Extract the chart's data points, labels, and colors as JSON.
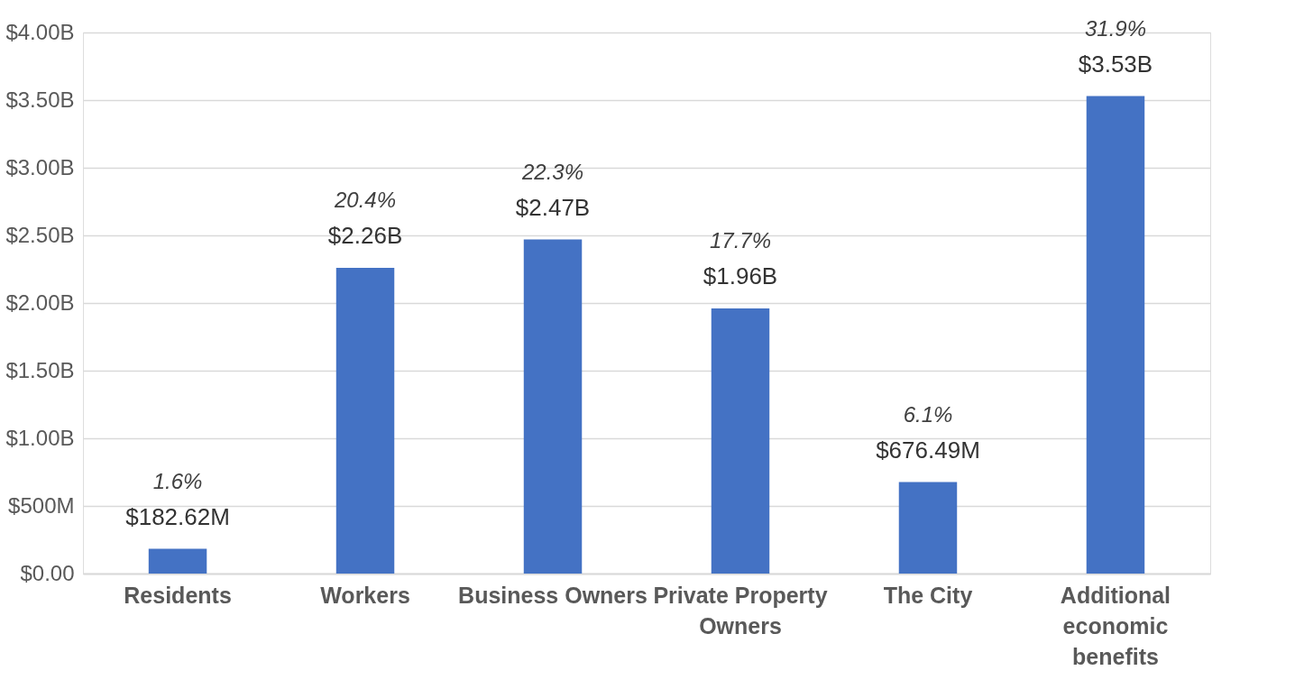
{
  "chart_data": {
    "type": "bar",
    "categories": [
      "Residents",
      "Workers",
      "Business Owners",
      "Private Property Owners",
      "The City",
      "Additional economic benefits"
    ],
    "values": [
      182620000,
      2260000000,
      2470000000,
      1960000000,
      676490000,
      3530000000
    ],
    "value_labels": [
      "$182.62M",
      "$2.26B",
      "$2.47B",
      "$1.96B",
      "$676.49M",
      "$3.53B"
    ],
    "color": "#4472c4",
    "ylim": [
      0,
      4000000000
    ],
    "yticks": [
      {
        "value": 0,
        "label": "$0.00"
      },
      {
        "value": 500000000,
        "label": "$500M"
      },
      {
        "value": 1000000000,
        "label": "$1.00B"
      },
      {
        "value": 1500000000,
        "label": "$1.50B"
      },
      {
        "value": 2000000000,
        "label": "$2.00B"
      },
      {
        "value": 2500000000,
        "label": "$2.50B"
      },
      {
        "value": 3000000000,
        "label": "$3.00B"
      },
      {
        "value": 3500000000,
        "label": "$3.50B"
      },
      {
        "value": 4000000000,
        "label": "$4.00B"
      }
    ],
    "annotations": [
      {
        "text": "1.6%",
        "x": "Residents",
        "y": 182620000
      },
      {
        "text": "20.4%",
        "x": "Workers",
        "y": 2260000000
      },
      {
        "text": "22.3%",
        "x": "Business Owners",
        "y": 2470000000
      },
      {
        "text": "17.7%",
        "x": "Private Property Owners",
        "y": 1960000000
      },
      {
        "text": "6.1%",
        "x": "The City",
        "y": 676490000
      },
      {
        "text": "31.9%",
        "x": "Additional economic benefits",
        "y": 3530000000
      }
    ],
    "grid": "y"
  }
}
